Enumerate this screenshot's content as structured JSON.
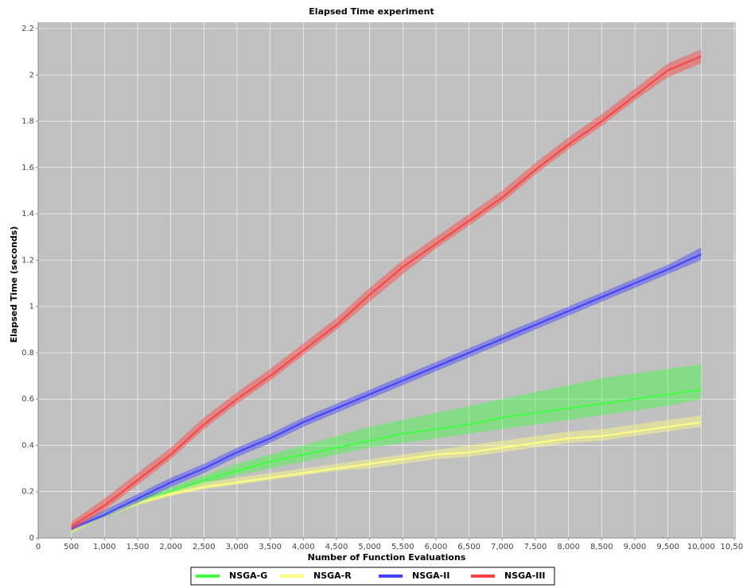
{
  "chart_data": {
    "type": "band-line",
    "title": "Elapsed Time experiment",
    "x_label": "Number of Function Evaluations",
    "y_label": "Elapsed Time (seconds)",
    "x": [
      500,
      1000,
      1500,
      2000,
      2500,
      3000,
      3500,
      4000,
      4500,
      5000,
      5500,
      6000,
      6500,
      7000,
      7500,
      8000,
      8500,
      9000,
      9500,
      10000
    ],
    "series": [
      {
        "name": "NSGA-G",
        "color": "#40ff40",
        "values": [
          0.03,
          0.1,
          0.15,
          0.2,
          0.25,
          0.29,
          0.33,
          0.36,
          0.39,
          0.42,
          0.45,
          0.47,
          0.49,
          0.52,
          0.54,
          0.56,
          0.58,
          0.6,
          0.62,
          0.64
        ],
        "lower": [
          0.02,
          0.09,
          0.14,
          0.19,
          0.23,
          0.27,
          0.3,
          0.33,
          0.36,
          0.39,
          0.41,
          0.43,
          0.45,
          0.47,
          0.49,
          0.51,
          0.53,
          0.55,
          0.57,
          0.6
        ],
        "upper": [
          0.04,
          0.11,
          0.17,
          0.22,
          0.27,
          0.32,
          0.36,
          0.4,
          0.44,
          0.48,
          0.51,
          0.54,
          0.57,
          0.6,
          0.63,
          0.66,
          0.69,
          0.71,
          0.73,
          0.75
        ]
      },
      {
        "name": "NSGA-R",
        "color": "#ffff80",
        "values": [
          0.03,
          0.1,
          0.15,
          0.19,
          0.22,
          0.24,
          0.26,
          0.28,
          0.3,
          0.32,
          0.34,
          0.36,
          0.37,
          0.39,
          0.41,
          0.43,
          0.44,
          0.46,
          0.48,
          0.5
        ],
        "lower": [
          0.02,
          0.09,
          0.14,
          0.18,
          0.21,
          0.23,
          0.25,
          0.27,
          0.29,
          0.3,
          0.32,
          0.34,
          0.35,
          0.37,
          0.39,
          0.41,
          0.42,
          0.44,
          0.46,
          0.48
        ],
        "upper": [
          0.04,
          0.11,
          0.16,
          0.2,
          0.24,
          0.26,
          0.28,
          0.3,
          0.32,
          0.34,
          0.36,
          0.38,
          0.4,
          0.42,
          0.44,
          0.46,
          0.47,
          0.49,
          0.51,
          0.53
        ]
      },
      {
        "name": "NSGA-II",
        "color": "#4040ff",
        "values": [
          0.04,
          0.1,
          0.17,
          0.24,
          0.3,
          0.37,
          0.43,
          0.5,
          0.56,
          0.62,
          0.68,
          0.74,
          0.8,
          0.86,
          0.92,
          0.98,
          1.04,
          1.1,
          1.16,
          1.225
        ],
        "lower": [
          0.03,
          0.09,
          0.15,
          0.22,
          0.28,
          0.35,
          0.41,
          0.48,
          0.54,
          0.6,
          0.66,
          0.72,
          0.78,
          0.84,
          0.9,
          0.96,
          1.02,
          1.08,
          1.14,
          1.2
        ],
        "upper": [
          0.05,
          0.12,
          0.19,
          0.26,
          0.32,
          0.39,
          0.45,
          0.52,
          0.58,
          0.64,
          0.7,
          0.76,
          0.82,
          0.88,
          0.94,
          1.0,
          1.06,
          1.12,
          1.18,
          1.255
        ]
      },
      {
        "name": "NSGA-III",
        "color": "#ff4040",
        "values": [
          0.05,
          0.14,
          0.25,
          0.36,
          0.49,
          0.6,
          0.7,
          0.81,
          0.92,
          1.05,
          1.17,
          1.27,
          1.37,
          1.47,
          1.59,
          1.7,
          1.8,
          1.91,
          2.02,
          2.08
        ],
        "lower": [
          0.03,
          0.12,
          0.23,
          0.34,
          0.47,
          0.58,
          0.68,
          0.79,
          0.9,
          1.02,
          1.14,
          1.25,
          1.35,
          1.45,
          1.57,
          1.68,
          1.78,
          1.89,
          1.99,
          2.05
        ],
        "upper": [
          0.07,
          0.17,
          0.28,
          0.39,
          0.52,
          0.63,
          0.73,
          0.84,
          0.95,
          1.08,
          1.2,
          1.3,
          1.4,
          1.5,
          1.62,
          1.73,
          1.83,
          1.94,
          2.05,
          2.11
        ]
      }
    ],
    "xlim": [
      0,
      10500
    ],
    "ylim": [
      0,
      2.2
    ],
    "xticks": [
      0,
      500,
      {
        "value": 1000,
        "label": "1,000"
      },
      {
        "value": 1500,
        "label": "1,500"
      },
      {
        "value": 2000,
        "label": "2,000"
      },
      {
        "value": 2500,
        "label": "2,500"
      },
      {
        "value": 3000,
        "label": "3,000"
      },
      {
        "value": 3500,
        "label": "3,500"
      },
      {
        "value": 4000,
        "label": "4,000"
      },
      {
        "value": 4500,
        "label": "4,500"
      },
      {
        "value": 5000,
        "label": "5,000"
      },
      {
        "value": 5500,
        "label": "5,500"
      },
      {
        "value": 6000,
        "label": "6,000"
      },
      {
        "value": 6500,
        "label": "6,500"
      },
      {
        "value": 7000,
        "label": "7,000"
      },
      {
        "value": 7500,
        "label": "7,500"
      },
      {
        "value": 8000,
        "label": "8,000"
      },
      {
        "value": 8500,
        "label": "8,500"
      },
      {
        "value": 9000,
        "label": "9,000"
      },
      {
        "value": 9500,
        "label": "9,500"
      },
      {
        "value": 10000,
        "label": "10,000"
      },
      {
        "value": 10500,
        "label": "10,500"
      }
    ],
    "yticks": [
      0,
      0.2,
      0.4,
      0.6,
      0.8,
      1,
      1.2,
      1.4,
      1.6,
      1.8,
      2,
      2.2
    ],
    "grid": true,
    "legend": "bottom"
  }
}
